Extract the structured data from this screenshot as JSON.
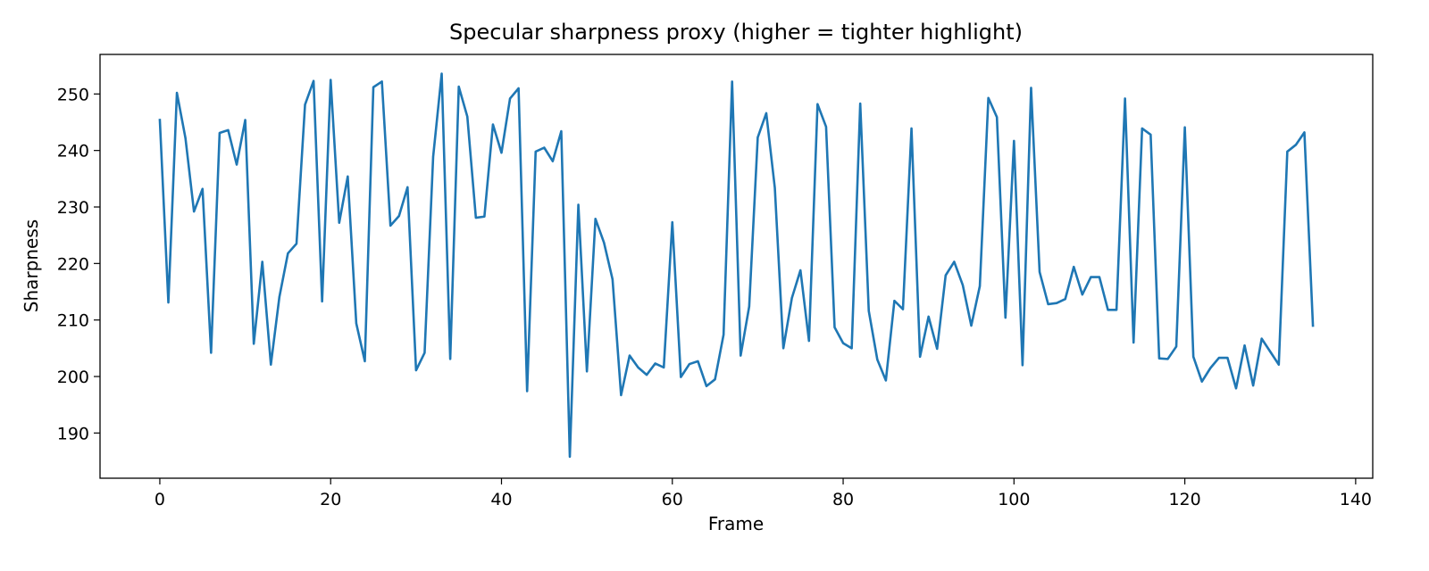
{
  "chart_data": {
    "type": "line",
    "title": "Specular sharpness proxy (higher = tighter highlight)",
    "xlabel": "Frame",
    "ylabel": "Sharpness",
    "xlim": [
      -7,
      142
    ],
    "ylim": [
      182,
      257
    ],
    "xticks": [
      0,
      20,
      40,
      60,
      80,
      100,
      120,
      140
    ],
    "yticks": [
      190,
      200,
      210,
      220,
      230,
      240,
      250
    ],
    "grid": false,
    "series": [
      {
        "color": "#1f77b4",
        "x": [
          0,
          1,
          2,
          3,
          4,
          5,
          6,
          7,
          8,
          9,
          10,
          11,
          12,
          13,
          14,
          15,
          16,
          17,
          18,
          19,
          20,
          21,
          22,
          23,
          24,
          25,
          26,
          27,
          28,
          29,
          30,
          31,
          32,
          33,
          34,
          35,
          36,
          37,
          38,
          39,
          40,
          41,
          42,
          43,
          44,
          45,
          46,
          47,
          48,
          49,
          50,
          51,
          52,
          53,
          54,
          55,
          56,
          57,
          58,
          59,
          60,
          61,
          62,
          63,
          64,
          65,
          66,
          67,
          68,
          69,
          70,
          71,
          72,
          73,
          74,
          75,
          76,
          77,
          78,
          79,
          80,
          81,
          82,
          83,
          84,
          85,
          86,
          87,
          88,
          89,
          90,
          91,
          92,
          93,
          94,
          95,
          96,
          97,
          98,
          99,
          100,
          101,
          102,
          103,
          104,
          105,
          106,
          107,
          108,
          109,
          110,
          111,
          112,
          113,
          114,
          115,
          116,
          117,
          118,
          119,
          120,
          121,
          122,
          123,
          124,
          125,
          126,
          127,
          128,
          129,
          130,
          131,
          132,
          133,
          134,
          135
        ],
        "values": [
          245.4,
          213.1,
          250.2,
          242.2,
          229.2,
          233.2,
          204.2,
          243.1,
          243.6,
          237.5,
          245.4,
          205.8,
          220.3,
          202.1,
          214.1,
          221.8,
          223.5,
          248.1,
          252.3,
          213.3,
          252.5,
          227.2,
          235.4,
          209.4,
          202.7,
          251.2,
          252.2,
          226.7,
          228.4,
          233.5,
          201.1,
          204.2,
          238.9,
          253.6,
          203.1,
          251.3,
          246.0,
          228.1,
          228.3,
          244.6,
          239.6,
          249.2,
          251.0,
          197.4,
          239.8,
          240.5,
          238.1,
          243.4,
          185.8,
          230.4,
          200.9,
          227.9,
          223.7,
          217.2,
          196.7,
          203.7,
          201.6,
          200.3,
          202.3,
          201.6,
          227.3,
          199.9,
          202.2,
          202.7,
          198.3,
          199.5,
          207.4,
          252.2,
          203.7,
          212.4,
          242.3,
          246.6,
          233.4,
          205.0,
          213.9,
          218.8,
          206.3,
          248.2,
          244.2,
          208.7,
          205.9,
          205.0,
          248.3,
          211.6,
          203.0,
          199.3,
          213.4,
          211.9,
          243.9,
          203.5,
          210.6,
          204.9,
          217.9,
          220.3,
          216.2,
          209.0,
          216.0,
          249.3,
          245.9,
          210.4,
          241.7,
          202.0,
          251.1,
          218.5,
          212.8,
          213.0,
          213.7,
          219.4,
          214.5,
          217.6,
          217.6,
          211.8,
          211.8,
          249.2,
          206.0,
          243.9,
          242.8,
          203.2,
          203.1,
          205.3,
          244.1,
          203.5,
          199.1,
          201.5,
          203.3,
          203.3,
          197.9,
          205.5,
          198.4,
          206.7,
          204.4,
          202.1,
          239.8,
          241.0,
          243.2,
          209.0
        ]
      }
    ]
  }
}
